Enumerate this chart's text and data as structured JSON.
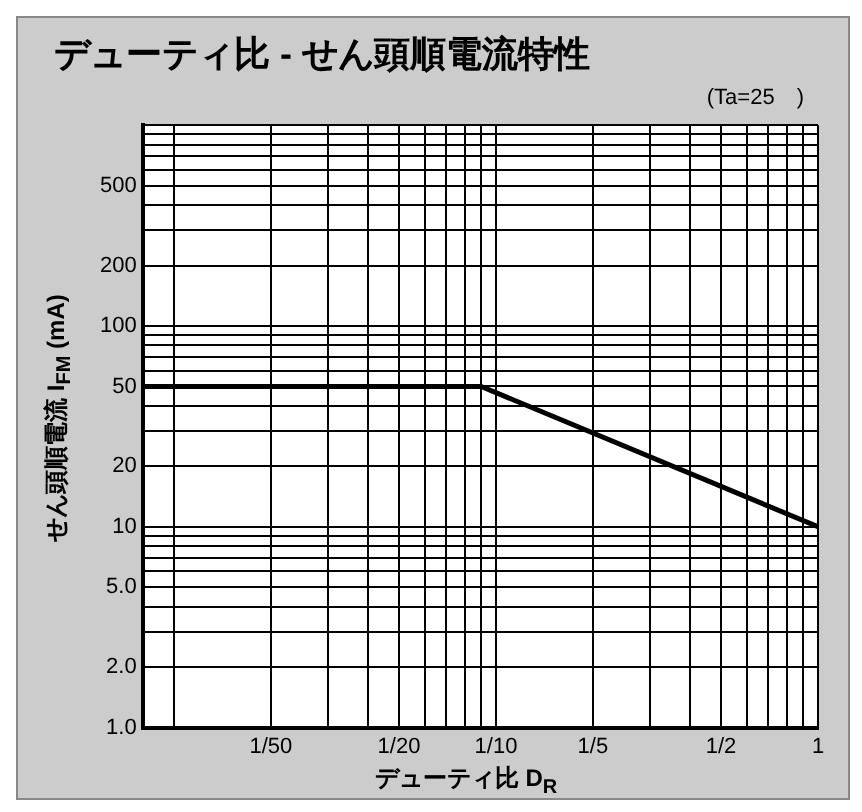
{
  "chart_data": {
    "type": "line",
    "title": "デューティ比 - せん頭順電流特性",
    "xlabel": "デューティ比 D$_{R}$",
    "ylabel": "せん頭順電流 I$_{FM}$ (mA)",
    "annotations": [
      "(Ta=25　)"
    ],
    "log": "xy",
    "grid": true,
    "xlim": [
      0.008,
      1
    ],
    "ylim": [
      1,
      1000
    ],
    "xticks": [
      {
        "value": 0.01,
        "label": null
      },
      {
        "value": 0.02,
        "label": "1/50"
      },
      {
        "value": 0.03,
        "label": null
      },
      {
        "value": 0.04,
        "label": null
      },
      {
        "value": 0.05,
        "label": "1/20"
      },
      {
        "value": 0.06,
        "label": null
      },
      {
        "value": 0.07,
        "label": null
      },
      {
        "value": 0.08,
        "label": null
      },
      {
        "value": 0.09,
        "label": null
      },
      {
        "value": 0.1,
        "label": "1/10"
      },
      {
        "value": 0.2,
        "label": "1/5"
      },
      {
        "value": 0.3,
        "label": null
      },
      {
        "value": 0.4,
        "label": null
      },
      {
        "value": 0.5,
        "label": "1/2"
      },
      {
        "value": 0.6,
        "label": null
      },
      {
        "value": 0.7,
        "label": null
      },
      {
        "value": 0.8,
        "label": null
      },
      {
        "value": 0.9,
        "label": null
      },
      {
        "value": 1,
        "label": "1"
      }
    ],
    "yticks": [
      {
        "value": 1,
        "label": "1.0"
      },
      {
        "value": 2,
        "label": "2.0"
      },
      {
        "value": 3,
        "label": null
      },
      {
        "value": 4,
        "label": null
      },
      {
        "value": 5,
        "label": "5.0"
      },
      {
        "value": 6,
        "label": null
      },
      {
        "value": 7,
        "label": null
      },
      {
        "value": 8,
        "label": null
      },
      {
        "value": 9,
        "label": null
      },
      10,
      20,
      {
        "value": 30,
        "label": null
      },
      {
        "value": 40,
        "label": null
      },
      50,
      {
        "value": 60,
        "label": null
      },
      {
        "value": 70,
        "label": null
      },
      {
        "value": 80,
        "label": null
      },
      {
        "value": 90,
        "label": null
      },
      100,
      200,
      {
        "value": 300,
        "label": null
      },
      {
        "value": 400,
        "label": null
      },
      500,
      {
        "value": 600,
        "label": null
      },
      {
        "value": 700,
        "label": null
      },
      {
        "value": 800,
        "label": null
      },
      {
        "value": 900,
        "label": null
      },
      {
        "value": 1000,
        "label": null
      }
    ],
    "series": [
      {
        "color": "#000000",
        "x": [
          0.008,
          0.09,
          1
        ],
        "values": [
          50,
          50,
          10
        ]
      }
    ]
  }
}
